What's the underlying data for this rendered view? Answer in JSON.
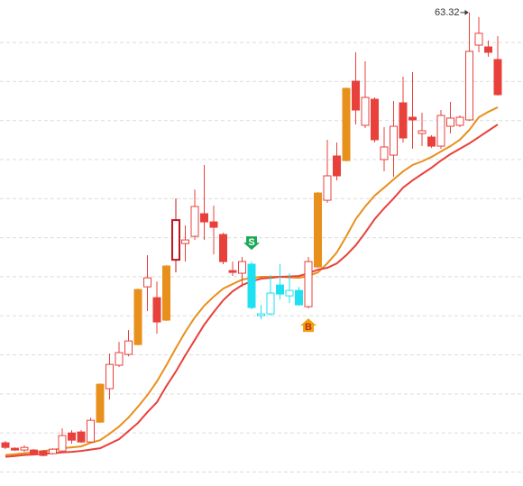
{
  "chart_data": {
    "type": "candlestick",
    "open": [
      22.77,
      22.26,
      22.09,
      22.09,
      22.0,
      21.75,
      22.0,
      23.7,
      23.79,
      22.85,
      24.72,
      27.87,
      30.08,
      31.1,
      32.03,
      37.47,
      36.45,
      34.33,
      40.02,
      41.55,
      42.23,
      44.36,
      43.59,
      42.4,
      39.0,
      38.75,
      39.6,
      34.75,
      34.92,
      37.64,
      36.62,
      37.13,
      35.6,
      39.34,
      45.63,
      49.8,
      49.37,
      56.85,
      52.69,
      55.15,
      49.46,
      49.88,
      54.81,
      53.45,
      51.92,
      51.58,
      50.73,
      52.6,
      52.69,
      53.2,
      60.25,
      60.08,
      58.89
    ],
    "high": [
      22.94,
      22.34,
      22.51,
      22.17,
      22.09,
      22.26,
      24.13,
      23.96,
      23.96,
      25.15,
      28.38,
      31.18,
      32.29,
      33.39,
      37.3,
      40.45,
      37.98,
      39.51,
      45.8,
      43.25,
      46.65,
      48.95,
      45.12,
      42.57,
      39.85,
      40.28,
      39.85,
      35.77,
      38.58,
      39.6,
      38.75,
      37.47,
      40.28,
      46.4,
      51.33,
      51.07,
      56.26,
      59.57,
      58.72,
      55.32,
      52.52,
      54.98,
      57.28,
      57.7,
      53.88,
      51.75,
      54.13,
      54.9,
      53.62,
      63.32,
      62.89,
      60.68,
      61.1
    ],
    "low": [
      22.17,
      22.0,
      21.92,
      21.58,
      21.49,
      21.66,
      21.83,
      22.68,
      22.77,
      22.77,
      24.64,
      26.85,
      29.91,
      30.93,
      31.95,
      35.18,
      33.05,
      34.24,
      38.83,
      39.85,
      41.89,
      41.89,
      40.53,
      39.6,
      38.49,
      37.47,
      35.35,
      34.41,
      34.75,
      36.28,
      35.94,
      35.69,
      35.43,
      39.26,
      45.38,
      47.5,
      49.29,
      52.77,
      52.43,
      51.07,
      48.35,
      47.84,
      51.07,
      50.48,
      50.73,
      50.56,
      50.48,
      51.92,
      52.52,
      53.11,
      59.57,
      59.15,
      55.49
    ],
    "close": [
      22.34,
      22.09,
      22.34,
      21.66,
      21.58,
      22.17,
      23.45,
      23.02,
      22.85,
      24.89,
      28.29,
      30.16,
      31.27,
      32.37,
      37.22,
      38.32,
      34.16,
      39.43,
      43.76,
      41.89,
      45.04,
      43.59,
      43.08,
      39.85,
      38.83,
      39.85,
      35.52,
      34.92,
      36.88,
      36.79,
      37.13,
      35.77,
      39.85,
      46.31,
      47.93,
      47.93,
      56.17,
      54.13,
      55.32,
      51.33,
      50.65,
      52.6,
      51.5,
      53.2,
      52.18,
      50.73,
      53.62,
      53.37,
      53.45,
      59.66,
      61.36,
      59.57,
      55.58
    ],
    "colors": [
      "#e8413c",
      "#e8413c",
      "#e8413c",
      "#e8413c",
      "#e8413c",
      "#e8413c",
      "#e8413c",
      "#e8413c",
      "#e8413c",
      "#e8413c",
      "#e8901c",
      "#e8413c",
      "#e8413c",
      "#e8413c",
      "#e8901c",
      "#e8413c",
      "#e8413c",
      "#e8901c",
      "#c0141e",
      "#e8413c",
      "#e8413c",
      "#e8413c",
      "#e8413c",
      "#e8413c",
      "#e8413c",
      "#e8413c",
      "#1ee0f0",
      "#1ee0f0",
      "#1ee0f0",
      "#1ee0f0",
      "#1ee0f0",
      "#1ee0f0",
      "#e8413c",
      "#e8901c",
      "#e8413c",
      "#e8413c",
      "#e8901c",
      "#e8413c",
      "#e8413c",
      "#e8413c",
      "#e8413c",
      "#e8413c",
      "#e8413c",
      "#e8413c",
      "#e8413c",
      "#e8413c",
      "#e8413c",
      "#e8413c",
      "#e8413c",
      "#e8413c",
      "#e8413c",
      "#e8413c",
      "#e8413c"
    ],
    "filled": [
      true,
      true,
      false,
      true,
      true,
      false,
      false,
      true,
      true,
      false,
      true,
      false,
      false,
      false,
      true,
      false,
      true,
      true,
      false,
      false,
      false,
      true,
      true,
      true,
      true,
      false,
      true,
      false,
      false,
      true,
      false,
      true,
      false,
      true,
      false,
      true,
      true,
      true,
      false,
      true,
      false,
      false,
      true,
      true,
      false,
      true,
      false,
      false,
      false,
      false,
      false,
      true,
      true
    ],
    "series": [
      {
        "color": "#e8901c",
        "values": [
          21.62,
          21.7,
          21.79,
          21.87,
          22.0,
          22.09,
          22.26,
          22.34,
          22.43,
          22.77,
          23.02,
          23.62,
          24.3,
          25.15,
          26.17,
          27.27,
          28.55,
          30.08,
          31.69,
          33.22,
          34.58,
          35.69,
          36.54,
          37.3,
          37.73,
          38.15,
          38.32,
          38.41,
          38.41,
          38.41,
          38.36,
          38.32,
          38.49,
          38.83,
          39.68,
          40.7,
          42.23,
          43.85,
          45.04,
          46.06,
          46.82,
          47.59,
          48.35,
          48.95,
          49.29,
          49.71,
          50.22,
          50.73,
          51.33,
          52.26,
          53.45,
          53.96,
          54.39
        ]
      },
      {
        "color": "#e8413c",
        "values": [
          21.45,
          21.53,
          21.62,
          21.66,
          21.75,
          21.79,
          21.87,
          21.92,
          22.0,
          22.13,
          22.26,
          22.68,
          23.11,
          23.87,
          24.64,
          25.66,
          26.59,
          28.12,
          29.48,
          31.01,
          32.46,
          33.9,
          35.09,
          36.2,
          37.05,
          37.64,
          37.98,
          38.24,
          38.32,
          38.41,
          38.45,
          38.49,
          38.75,
          39.09,
          39.26,
          39.68,
          40.45,
          41.38,
          42.57,
          43.85,
          44.87,
          45.8,
          46.82,
          47.5,
          48.1,
          48.69,
          49.37,
          49.97,
          50.48,
          50.99,
          51.58,
          52.18,
          52.77
        ]
      }
    ],
    "signals": [
      null,
      null,
      null,
      null,
      null,
      null,
      null,
      null,
      null,
      null,
      null,
      null,
      null,
      null,
      null,
      null,
      null,
      null,
      null,
      null,
      null,
      null,
      null,
      null,
      null,
      null,
      "S",
      null,
      null,
      null,
      null,
      null,
      "B",
      null,
      null,
      null,
      null,
      null,
      null,
      null,
      null,
      null,
      null,
      null,
      null,
      null,
      null,
      null,
      null,
      null,
      null,
      null,
      null
    ],
    "ylim": [
      18.7,
      64.5
    ],
    "yticks": [
      60.5,
      56.82,
      53.14,
      49.46,
      45.78,
      42.1,
      38.42,
      34.74,
      31.06,
      27.38,
      23.7,
      20.02
    ],
    "grid": true
  }
}
